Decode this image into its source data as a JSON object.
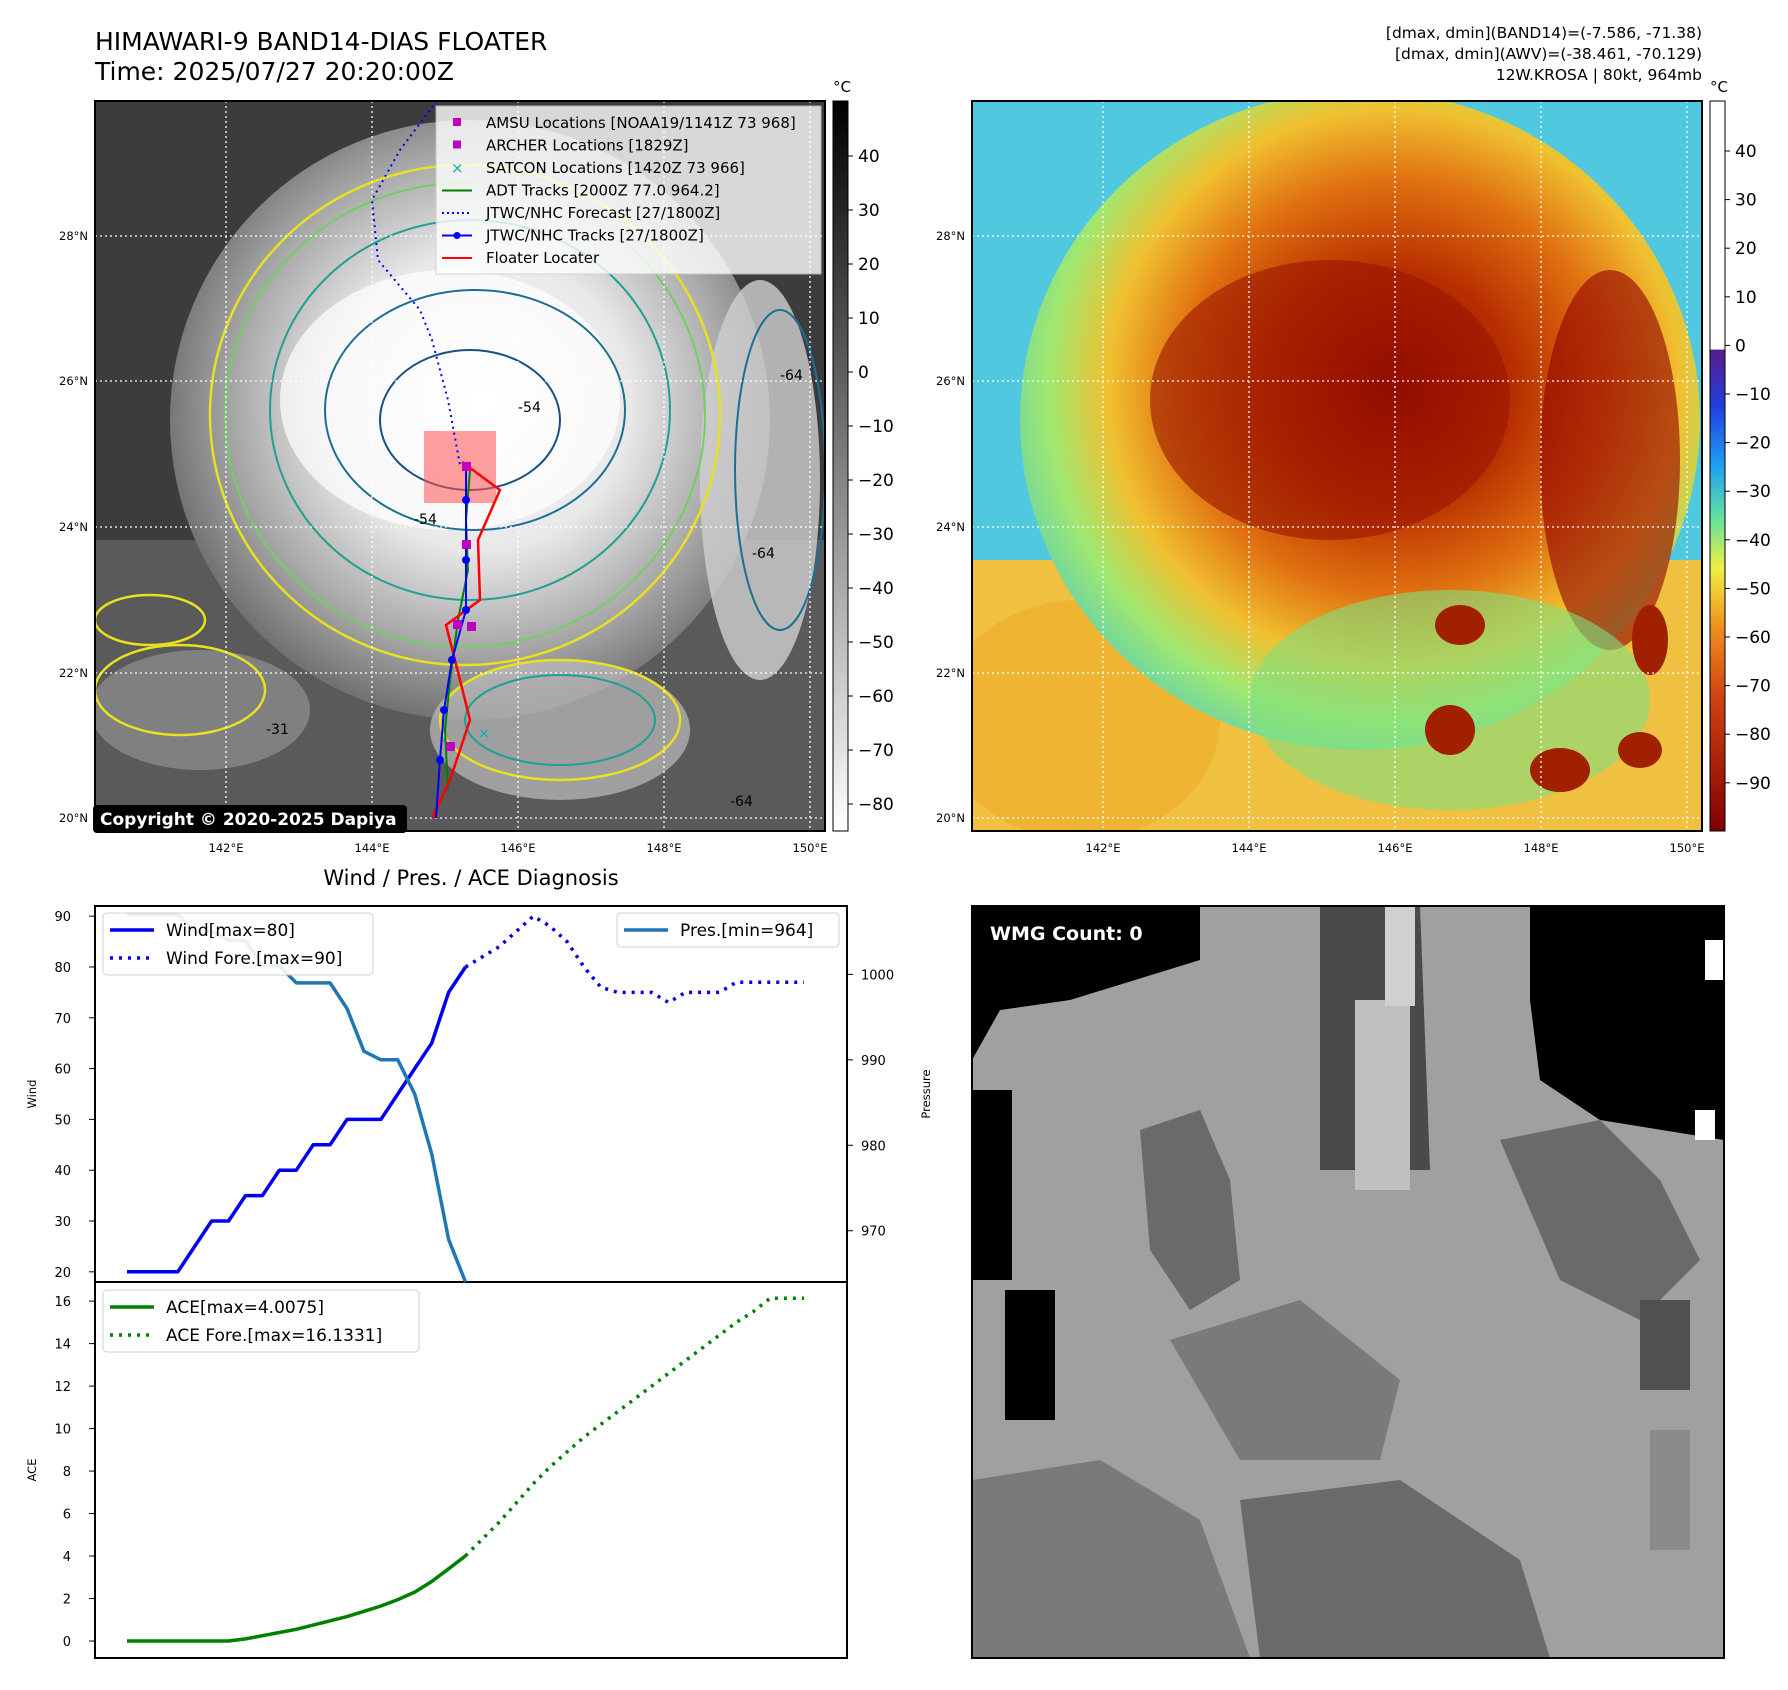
{
  "header": {
    "title_line1": "HIMAWARI-9 BAND14-DIAS FLOATER",
    "title_line2": "Time: 2025/07/27 20:20:00Z",
    "info_line1": "[dmax, dmin](BAND14)=(-7.586, -71.38)",
    "info_line2": "[dmax, dmin](AWV)=(-38.461, -70.129)",
    "info_line3": "12W.KROSA | 80kt, 964mb"
  },
  "maps": {
    "lon_labels": [
      "142°E",
      "144°E",
      "146°E",
      "148°E",
      "150°E"
    ],
    "lat_labels": [
      "28°N",
      "26°N",
      "24°N",
      "22°N",
      "20°N"
    ],
    "unit_label": "°C",
    "copyright": "Copyright © 2020-2025 Dapiya",
    "ir_colorbar_ticks": [
      "40",
      "30",
      "20",
      "10",
      "0",
      "−10",
      "−20",
      "−30",
      "−40",
      "−50",
      "−60",
      "−70",
      "−80"
    ],
    "wv_colorbar_ticks": [
      "40",
      "30",
      "20",
      "10",
      "0",
      "−10",
      "−20",
      "−30",
      "−40",
      "−50",
      "−60",
      "−70",
      "−80",
      "−90"
    ],
    "contour_labels": [
      "-64",
      "-54",
      "-54",
      "-64",
      "-64",
      "-31"
    ],
    "legend": [
      {
        "label": "AMSU Locations [NOAA19/1141Z 73 968]",
        "color": "#c000c0",
        "icon": "square-marker"
      },
      {
        "label": "ARCHER Locations [1829Z]",
        "color": "#c000c0",
        "icon": "square-marker"
      },
      {
        "label": "SATCON Locations [1420Z 73 966]",
        "color": "#00b0b0",
        "icon": "x-marker"
      },
      {
        "label": "ADT Tracks [2000Z 77.0 964.2]",
        "color": "#008000",
        "icon": "solid-line"
      },
      {
        "label": "JTWC/NHC Forecast [27/1800Z]",
        "color": "#0000ff",
        "icon": "dotted-line"
      },
      {
        "label": "JTWC/NHC Tracks [27/1800Z]",
        "color": "#0000ff",
        "icon": "line-dot"
      },
      {
        "label": "Floater Locater",
        "color": "#ff0000",
        "icon": "solid-line"
      }
    ]
  },
  "diag": {
    "title": "Wind / Pres. / ACE Diagnosis",
    "wind_ylabel": "Wind",
    "pres_ylabel": "Pressure",
    "ace_ylabel": "ACE",
    "legend_wind": "Wind[max=80]",
    "legend_wind_fore": "Wind Fore.[max=90]",
    "legend_pres": "Pres.[min=964]",
    "legend_ace": "ACE[max=4.0075]",
    "legend_ace_fore": "ACE Fore.[max=16.1331]"
  },
  "wmg": {
    "label": "WMG Count: 0"
  },
  "chart_data": [
    {
      "type": "line",
      "name": "wind",
      "ylim": [
        18,
        92
      ],
      "yticks": [
        20,
        30,
        40,
        50,
        60,
        70,
        80,
        90
      ],
      "series": [
        {
          "name": "Wind[max=80]",
          "color": "#0000ee",
          "style": "solid",
          "x": [
            0,
            1,
            2,
            3,
            4,
            5,
            6,
            7,
            8,
            9,
            10,
            11,
            12,
            13,
            14,
            15,
            16,
            17,
            18,
            19,
            20
          ],
          "y": [
            20,
            20,
            20,
            20,
            25,
            30,
            30,
            35,
            35,
            40,
            40,
            45,
            45,
            50,
            50,
            50,
            55,
            60,
            65,
            75,
            80
          ]
        },
        {
          "name": "Wind Fore.[max=90]",
          "color": "#0000ee",
          "style": "dotted",
          "x": [
            20,
            21,
            22,
            23,
            24,
            25,
            26,
            27,
            28,
            29,
            30,
            31,
            32,
            33,
            34,
            35,
            36,
            37,
            38,
            39,
            40
          ],
          "y": [
            80,
            82,
            84,
            87,
            90,
            88,
            85,
            80,
            76,
            75,
            75,
            75,
            73,
            75,
            75,
            75,
            77,
            77,
            77,
            77,
            77
          ]
        }
      ]
    },
    {
      "type": "line",
      "name": "pressure",
      "ylim": [
        964,
        1008
      ],
      "yticks": [
        970,
        980,
        990,
        1000
      ],
      "series": [
        {
          "name": "Pres.[min=964]",
          "color": "#1f77b4",
          "style": "solid",
          "x": [
            0,
            1,
            2,
            3,
            4,
            5,
            6,
            7,
            8,
            9,
            10,
            11,
            12,
            13,
            14,
            15,
            16,
            17,
            18,
            19,
            20
          ],
          "y": [
            1007,
            1007,
            1007,
            1007,
            1005,
            1005,
            1004,
            1004,
            1001,
            1001,
            999,
            999,
            999,
            996,
            991,
            990,
            990,
            986,
            979,
            969,
            964
          ]
        }
      ]
    },
    {
      "type": "line",
      "name": "ace",
      "ylim": [
        -0.8,
        16.9
      ],
      "yticks": [
        0,
        2,
        4,
        6,
        8,
        10,
        12,
        14,
        16
      ],
      "series": [
        {
          "name": "ACE[max=4.0075]",
          "color": "#008000",
          "style": "solid",
          "x": [
            0,
            1,
            2,
            3,
            4,
            5,
            6,
            7,
            8,
            9,
            10,
            11,
            12,
            13,
            14,
            15,
            16,
            17,
            18,
            19,
            20
          ],
          "y": [
            0,
            0,
            0,
            0,
            0,
            0,
            0,
            0.1,
            0.25,
            0.4,
            0.55,
            0.75,
            0.95,
            1.15,
            1.4,
            1.65,
            1.95,
            2.3,
            2.8,
            3.4,
            4.0075
          ]
        },
        {
          "name": "ACE Fore.[max=16.1331]",
          "color": "#008000",
          "style": "dotted",
          "x": [
            20,
            21,
            22,
            23,
            24,
            25,
            26,
            27,
            28,
            29,
            30,
            31,
            32,
            33,
            34,
            35,
            36,
            37,
            38,
            39,
            40
          ],
          "y": [
            4.0075,
            4.8,
            5.6,
            6.5,
            7.4,
            8.2,
            8.9,
            9.6,
            10.2,
            10.8,
            11.4,
            12.0,
            12.6,
            13.2,
            13.8,
            14.4,
            15.0,
            15.5,
            16.1331,
            16.1331,
            16.1331
          ]
        }
      ]
    }
  ]
}
